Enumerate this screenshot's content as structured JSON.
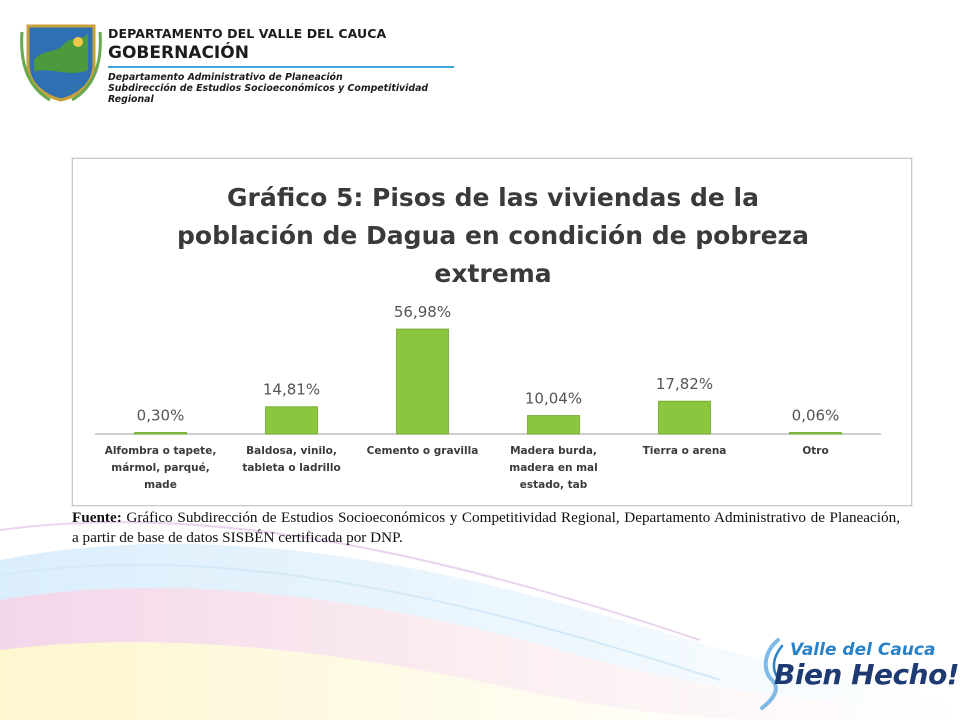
{
  "header": {
    "dept_title": "DEPARTAMENTO DEL VALLE DEL CAUCA",
    "gobernacion": "GOBERNACIÓN",
    "subtitle1": "Departamento  Administrativo de Planeación",
    "subtitle2": "Subdirección de Estudios Socioeconómicos y Competitividad Regional"
  },
  "colors": {
    "bar": "#8cc63f",
    "bar_dark": "#6fa82c",
    "axis": "#bdbdbd",
    "title": "#3a3a3a",
    "brand_blue": "#2a82c6",
    "brand_navy": "#1d3a72"
  },
  "chart_data": {
    "type": "bar",
    "title": "Gráfico 5: Pisos de las viviendas de la población de Dagua en condición de pobreza extrema",
    "title_lines": [
      "Gráfico 5: Pisos de las viviendas de la",
      "población de Dagua en condición de pobreza",
      "extrema"
    ],
    "categories": [
      "Alfombra o tapete, mármol, parqué, made",
      "Baldosa, vinilo, tableta o ladrillo",
      "Cemento o gravilla",
      "Madera burda, madera en mal estado, tab",
      "Tierra o arena",
      "Otro"
    ],
    "category_lines": [
      [
        "Alfombra o tapete,",
        "mármol, parqué,",
        "made"
      ],
      [
        "Baldosa, vinilo,",
        "tableta o ladrillo"
      ],
      [
        "Cemento o gravilla"
      ],
      [
        "Madera burda,",
        "madera en mal",
        "estado, tab"
      ],
      [
        "Tierra o arena"
      ],
      [
        "Otro"
      ]
    ],
    "values": [
      0.3,
      14.81,
      56.98,
      10.04,
      17.82,
      0.06
    ],
    "data_labels": [
      "0,30%",
      "14,81%",
      "56,98%",
      "10,04%",
      "17,82%",
      "0,06%"
    ],
    "ylim": [
      0,
      57
    ],
    "grid": false,
    "legend": "none"
  },
  "source": {
    "label": "Fuente:",
    "text": " Gráfico Subdirección de Estudios Socioeconómicos y Competitividad Regional, Departamento Administrativo de Planeación, a partir de base de datos SISBÉN certificada por DNP."
  },
  "logo": {
    "line1": "Valle del Cauca",
    "line2": "Bien Hecho!"
  }
}
